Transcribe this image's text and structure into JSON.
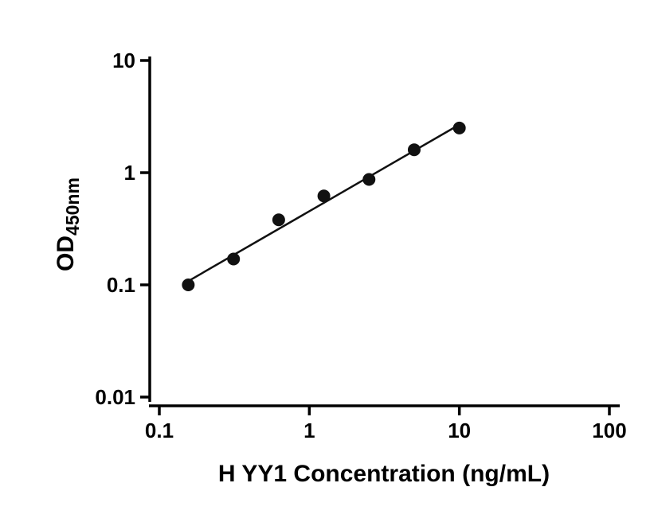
{
  "chart_data": {
    "type": "scatter",
    "title": "",
    "xlabel": "H YY1 Concentration (ng/mL)",
    "ylabel_main": "OD",
    "ylabel_sub": "450nm",
    "x_scale": "log",
    "y_scale": "log",
    "x_range": [
      0.1,
      100
    ],
    "y_range": [
      0.01,
      10
    ],
    "x_ticks": [
      0.1,
      1,
      10,
      100
    ],
    "x_tick_labels": [
      "0.1",
      "1",
      "10",
      "100"
    ],
    "y_ticks": [
      0.01,
      0.1,
      1,
      10
    ],
    "y_tick_labels": [
      "0.01",
      "0.1",
      "1",
      "10"
    ],
    "points": [
      {
        "x": 0.156,
        "y": 0.1
      },
      {
        "x": 0.3125,
        "y": 0.17
      },
      {
        "x": 0.625,
        "y": 0.38
      },
      {
        "x": 1.25,
        "y": 0.62
      },
      {
        "x": 2.5,
        "y": 0.87
      },
      {
        "x": 5,
        "y": 1.6
      },
      {
        "x": 10,
        "y": 2.5
      }
    ],
    "trend_line": {
      "x_start": 0.156,
      "y_start": 0.108,
      "x_end": 10,
      "y_end": 2.68
    },
    "marker": {
      "shape": "circle",
      "color": "#111111",
      "radius": 8
    },
    "line_color": "#111111",
    "axis_color": "#000000",
    "grid": false,
    "legend": false
  }
}
